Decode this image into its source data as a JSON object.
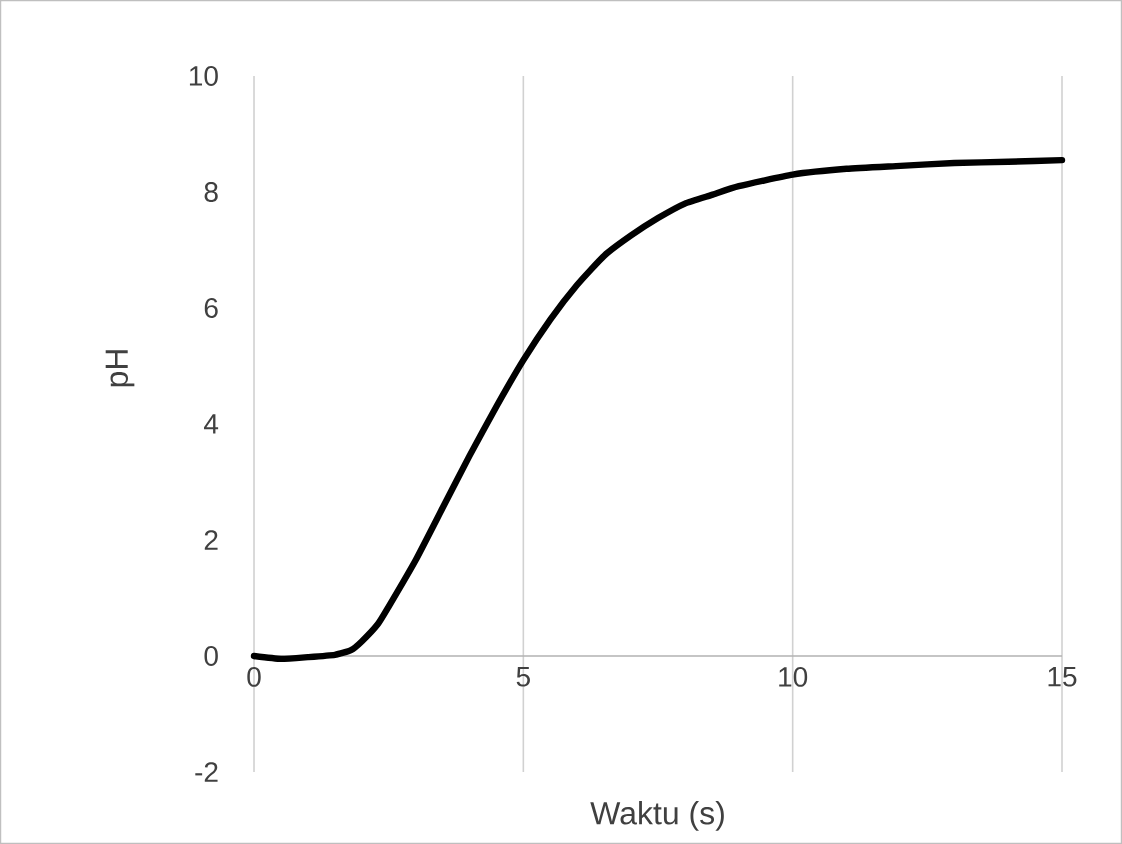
{
  "chart_data": {
    "type": "line",
    "xlabel": "Waktu (s)",
    "ylabel": "pH",
    "series": [
      {
        "color": "#000000",
        "x": [
          0,
          0.5,
          1,
          1.5,
          1.8,
          2,
          2.3,
          2.5,
          3,
          3.5,
          4,
          4.5,
          5,
          5.5,
          6,
          6.5,
          7,
          7.5,
          8,
          8.5,
          9,
          10,
          11,
          12,
          13,
          14,
          15
        ],
        "values": [
          0,
          -0.05,
          -0.02,
          0.02,
          0.1,
          0.25,
          0.55,
          0.85,
          1.65,
          2.55,
          3.45,
          4.3,
          5.1,
          5.8,
          6.4,
          6.9,
          7.25,
          7.55,
          7.8,
          7.95,
          8.1,
          8.3,
          8.4,
          8.45,
          8.5,
          8.52,
          8.55
        ]
      }
    ],
    "xlim": [
      0,
      15
    ],
    "ylim": [
      -2,
      10
    ],
    "xticks": [
      0,
      5,
      10,
      15
    ],
    "yticks": [
      -2,
      0,
      2,
      4,
      6,
      8,
      10
    ],
    "grid": "x",
    "line_style": "solid",
    "marker": "none"
  }
}
